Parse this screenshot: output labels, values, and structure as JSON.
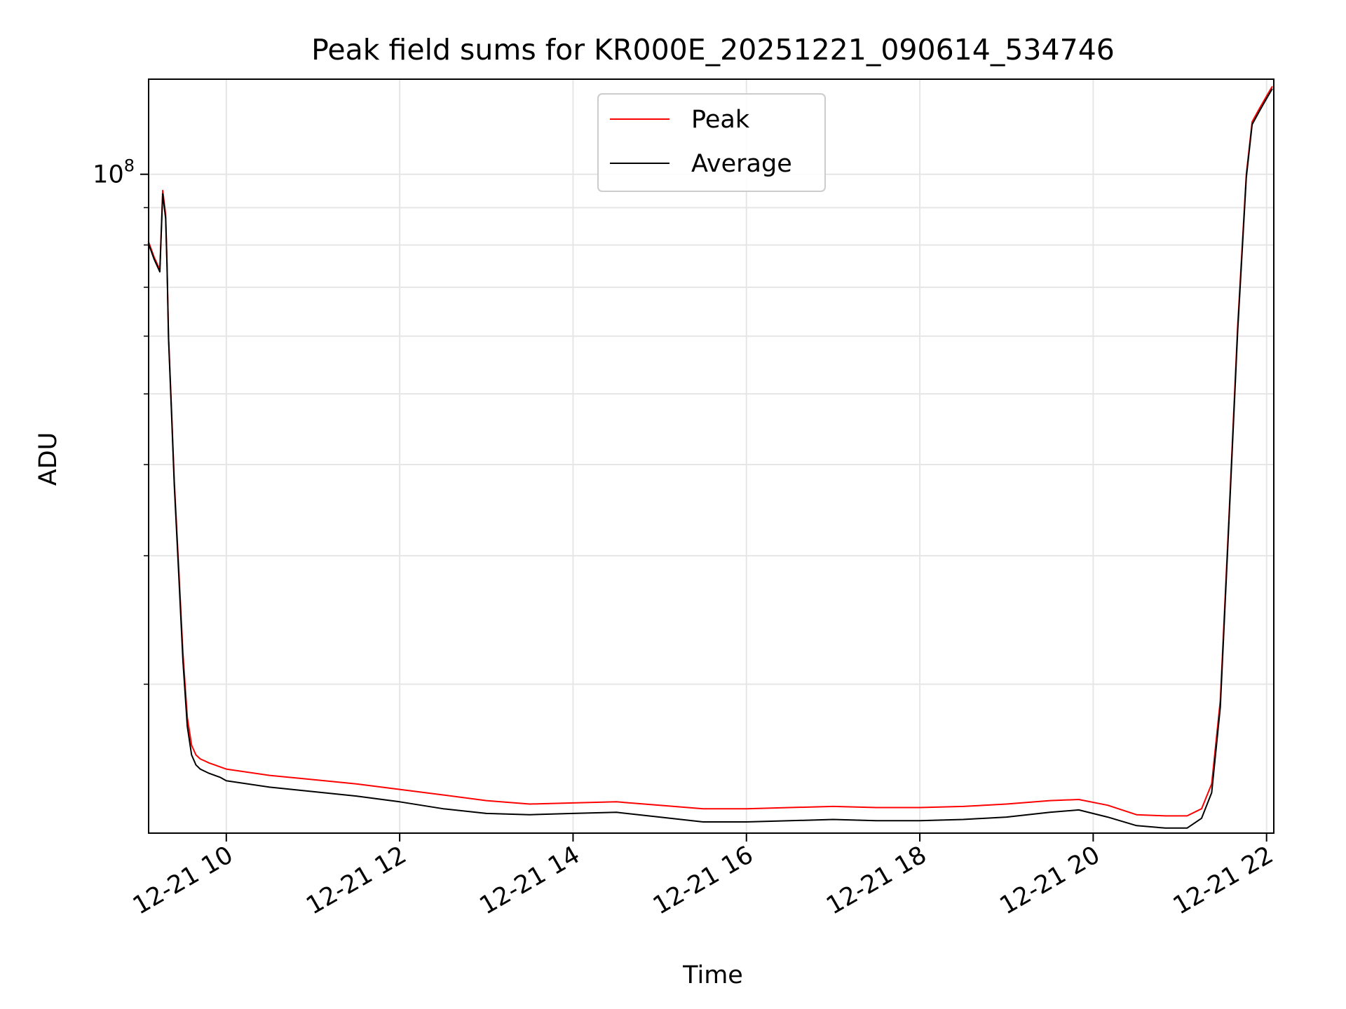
{
  "chart_data": {
    "type": "line",
    "title": "Peak field sums for KR000E_20251221_090614_534746",
    "xlabel": "Time",
    "ylabel": "ADU",
    "yscale": "log",
    "grid": true,
    "legend_position": "top-center",
    "xlim": [
      "2025-12-21T09:06:14",
      "2025-12-21T22:05:00"
    ],
    "ylim": [
      12500000,
      135000000
    ],
    "x_tick_labels": [
      "12-21 10",
      "12-21 12",
      "12-21 14",
      "12-21 16",
      "12-21 18",
      "12-21 20",
      "12-21 22"
    ],
    "x_tick_values": [
      "2025-12-21T10:00",
      "2025-12-21T12:00",
      "2025-12-21T14:00",
      "2025-12-21T16:00",
      "2025-12-21T18:00",
      "2025-12-21T20:00",
      "2025-12-21T22:00"
    ],
    "y_major_ticks": [
      {
        "value": 100000000,
        "base": "10",
        "exponent": "8"
      }
    ],
    "y_minor_ticks": [
      20000000,
      30000000,
      40000000,
      50000000,
      60000000,
      70000000,
      80000000,
      90000000
    ],
    "x": [
      "2025-12-21T09:06",
      "2025-12-21T09:10",
      "2025-12-21T09:14",
      "2025-12-21T09:16",
      "2025-12-21T09:18",
      "2025-12-21T09:19",
      "2025-12-21T09:20",
      "2025-12-21T09:22",
      "2025-12-21T09:24",
      "2025-12-21T09:27",
      "2025-12-21T09:30",
      "2025-12-21T09:33",
      "2025-12-21T09:36",
      "2025-12-21T09:39",
      "2025-12-21T09:42",
      "2025-12-21T09:45",
      "2025-12-21T09:48",
      "2025-12-21T09:52",
      "2025-12-21T09:56",
      "2025-12-21T10:00",
      "2025-12-21T10:30",
      "2025-12-21T11:00",
      "2025-12-21T11:30",
      "2025-12-21T12:00",
      "2025-12-21T12:30",
      "2025-12-21T13:00",
      "2025-12-21T13:30",
      "2025-12-21T14:00",
      "2025-12-21T14:30",
      "2025-12-21T15:00",
      "2025-12-21T15:30",
      "2025-12-21T16:00",
      "2025-12-21T16:30",
      "2025-12-21T17:00",
      "2025-12-21T17:30",
      "2025-12-21T18:00",
      "2025-12-21T18:30",
      "2025-12-21T19:00",
      "2025-12-21T19:30",
      "2025-12-21T19:50",
      "2025-12-21T20:10",
      "2025-12-21T20:30",
      "2025-12-21T20:50",
      "2025-12-21T21:05",
      "2025-12-21T21:15",
      "2025-12-21T21:22",
      "2025-12-21T21:28",
      "2025-12-21T21:34",
      "2025-12-21T21:40",
      "2025-12-21T21:46",
      "2025-12-21T21:50",
      "2025-12-21T21:55",
      "2025-12-21T22:00",
      "2025-12-21T22:04"
    ],
    "series": [
      {
        "name": "Peak",
        "color": "#ff0000",
        "values": [
          81000000,
          77000000,
          74000000,
          95000000,
          88000000,
          75000000,
          60000000,
          48000000,
          38000000,
          29000000,
          22000000,
          18000000,
          16500000,
          16000000,
          15800000,
          15700000,
          15600000,
          15500000,
          15400000,
          15300000,
          15000000,
          14800000,
          14600000,
          14350000,
          14100000,
          13850000,
          13700000,
          13750000,
          13800000,
          13650000,
          13500000,
          13500000,
          13550000,
          13600000,
          13550000,
          13550000,
          13600000,
          13700000,
          13850000,
          13900000,
          13650000,
          13250000,
          13200000,
          13200000,
          13500000,
          14600000,
          19000000,
          34000000,
          62000000,
          100000000,
          118000000,
          123000000,
          128000000,
          132000000
        ]
      },
      {
        "name": "Average",
        "color": "#000000",
        "values": [
          80500000,
          76500000,
          73500000,
          94000000,
          87000000,
          74500000,
          59500000,
          47500000,
          37500000,
          28500000,
          21500000,
          17500000,
          16000000,
          15500000,
          15300000,
          15200000,
          15100000,
          15000000,
          14900000,
          14750000,
          14450000,
          14250000,
          14050000,
          13800000,
          13500000,
          13300000,
          13250000,
          13300000,
          13350000,
          13150000,
          12950000,
          12950000,
          13000000,
          13050000,
          13000000,
          13000000,
          13050000,
          13150000,
          13350000,
          13450000,
          13150000,
          12800000,
          12700000,
          12700000,
          13100000,
          14200000,
          18600000,
          33500000,
          61000000,
          99000000,
          117000000,
          122000000,
          127000000,
          131000000
        ]
      }
    ]
  }
}
